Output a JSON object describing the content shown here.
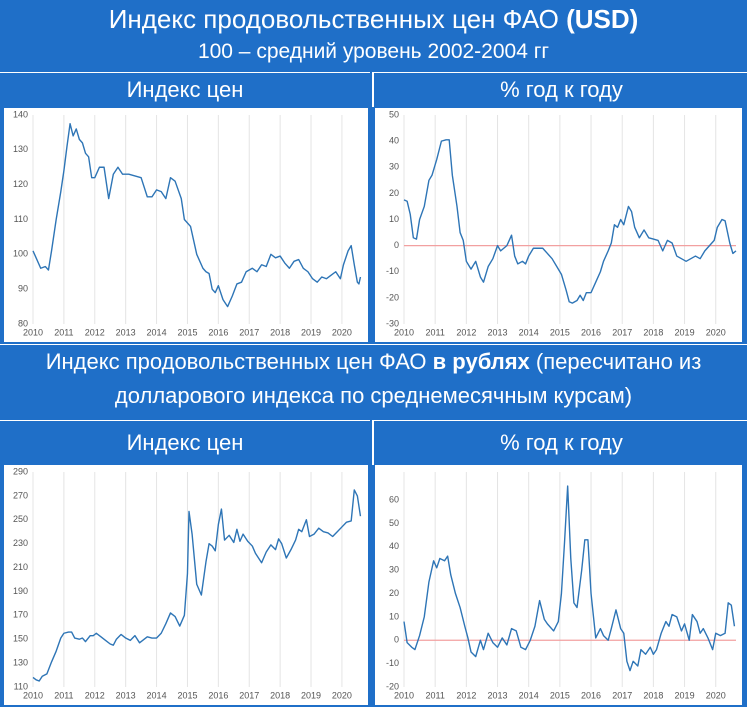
{
  "header": {
    "title": "Индекс продовольственных цен ФАО",
    "title_emphasis": "(USD)",
    "subtitle": "100 – средний уровень 2002-2004 гг"
  },
  "section": {
    "text_before": "Индекс продовольственных цен ФАО",
    "emphasis": "в рублях",
    "text_after": "(пересчитано из долларового индекса по среднемесячным курсам)"
  },
  "chart_data": [
    {
      "type": "line",
      "title": "Индекс цен",
      "color": "#2e75b6",
      "grid": true,
      "xlim": [
        2010,
        2020.65
      ],
      "xticks": [
        2010,
        2011,
        2012,
        2013,
        2014,
        2015,
        2016,
        2017,
        2018,
        2019,
        2020
      ],
      "ylim": [
        80,
        140
      ],
      "yticks": [
        80,
        90,
        100,
        110,
        120,
        130,
        140
      ],
      "x": [
        2010.0,
        2010.1,
        2010.25,
        2010.4,
        2010.5,
        2010.6,
        2010.75,
        2010.9,
        2011.0,
        2011.1,
        2011.2,
        2011.3,
        2011.4,
        2011.5,
        2011.6,
        2011.7,
        2011.8,
        2011.9,
        2012.0,
        2012.15,
        2012.3,
        2012.45,
        2012.6,
        2012.75,
        2012.9,
        2013.1,
        2013.3,
        2013.5,
        2013.7,
        2013.85,
        2014.0,
        2014.15,
        2014.3,
        2014.45,
        2014.6,
        2014.8,
        2014.9,
        2015.1,
        2015.3,
        2015.5,
        2015.6,
        2015.7,
        2015.8,
        2015.9,
        2016.0,
        2016.15,
        2016.3,
        2016.45,
        2016.6,
        2016.75,
        2016.9,
        2017.1,
        2017.25,
        2017.4,
        2017.55,
        2017.7,
        2017.85,
        2018.0,
        2018.15,
        2018.3,
        2018.45,
        2018.6,
        2018.75,
        2018.9,
        2019.05,
        2019.2,
        2019.35,
        2019.5,
        2019.65,
        2019.8,
        2019.95,
        2020.05,
        2020.2,
        2020.3,
        2020.4,
        2020.5,
        2020.55,
        2020.6
      ],
      "values": [
        101,
        99,
        96,
        96.5,
        95.5,
        101,
        110,
        118,
        124,
        131,
        137.5,
        134,
        136,
        133,
        132,
        129,
        128,
        122,
        122,
        125,
        125,
        116,
        123,
        125,
        123,
        123,
        122.5,
        122,
        116.5,
        116.5,
        118.5,
        118,
        116,
        122,
        121,
        116,
        110,
        108,
        100,
        96,
        95,
        94.5,
        90,
        89,
        91,
        87,
        85,
        88,
        91.5,
        92,
        95,
        96,
        95,
        97,
        96.5,
        100,
        99,
        99.5,
        97.5,
        96,
        98,
        98.5,
        96,
        95,
        93,
        92,
        93.5,
        93,
        94,
        95,
        93,
        97,
        101,
        102.5,
        97,
        92,
        91.5,
        93.5
      ]
    },
    {
      "type": "line",
      "title": "% год к году",
      "color": "#2e75b6",
      "grid": true,
      "hline": 0,
      "hline_color": "#f2a0a0",
      "xlim": [
        2010,
        2020.65
      ],
      "xticks": [
        2010,
        2011,
        2012,
        2013,
        2014,
        2015,
        2016,
        2017,
        2018,
        2019,
        2020
      ],
      "ylim": [
        -30,
        50
      ],
      "yticks": [
        -30,
        -20,
        -10,
        0,
        10,
        20,
        30,
        40,
        50
      ],
      "x": [
        2010.0,
        2010.1,
        2010.2,
        2010.3,
        2010.4,
        2010.5,
        2010.65,
        2010.8,
        2010.9,
        2011.05,
        2011.2,
        2011.35,
        2011.45,
        2011.55,
        2011.7,
        2011.8,
        2011.9,
        2012.0,
        2012.15,
        2012.3,
        2012.45,
        2012.55,
        2012.7,
        2012.85,
        2013.0,
        2013.1,
        2013.2,
        2013.3,
        2013.45,
        2013.55,
        2013.65,
        2013.8,
        2013.9,
        2014.0,
        2014.15,
        2014.3,
        2014.45,
        2014.6,
        2014.75,
        2014.9,
        2015.05,
        2015.2,
        2015.3,
        2015.4,
        2015.55,
        2015.65,
        2015.75,
        2015.85,
        2016.0,
        2016.15,
        2016.3,
        2016.4,
        2016.55,
        2016.65,
        2016.75,
        2016.85,
        2016.95,
        2017.05,
        2017.2,
        2017.3,
        2017.4,
        2017.55,
        2017.7,
        2017.85,
        2018.0,
        2018.15,
        2018.3,
        2018.45,
        2018.6,
        2018.75,
        2018.9,
        2019.05,
        2019.2,
        2019.35,
        2019.5,
        2019.65,
        2019.8,
        2019.95,
        2020.05,
        2020.2,
        2020.3,
        2020.45,
        2020.55,
        2020.65
      ],
      "values": [
        17.5,
        17,
        12,
        3,
        2.5,
        10,
        15,
        25,
        27,
        33,
        40,
        40.5,
        40.5,
        27,
        15,
        5,
        2,
        -6,
        -9,
        -6,
        -12,
        -14,
        -8,
        -5,
        0,
        -2,
        -1,
        0,
        4,
        -4,
        -7,
        -6,
        -7,
        -4,
        -1,
        -1,
        -1,
        -3,
        -5,
        -8,
        -11,
        -17,
        -21.5,
        -22,
        -21,
        -19,
        -21,
        -18,
        -18,
        -14,
        -10,
        -6,
        -2,
        1,
        8,
        7,
        10,
        8,
        15,
        13,
        7,
        3,
        6,
        3,
        2.5,
        2,
        -2,
        2,
        1,
        -4,
        -5,
        -6,
        -5,
        -4,
        -5,
        -2,
        0,
        2,
        7,
        10,
        9.5,
        1,
        -3,
        -2
      ]
    },
    {
      "type": "line",
      "title": "Индекс цен",
      "color": "#2e75b6",
      "grid": true,
      "xlim": [
        2010,
        2020.65
      ],
      "xticks": [
        2010,
        2011,
        2012,
        2013,
        2014,
        2015,
        2016,
        2017,
        2018,
        2019,
        2020
      ],
      "ylim": [
        110,
        290
      ],
      "yticks": [
        110,
        130,
        150,
        170,
        190,
        210,
        230,
        250,
        270,
        290
      ],
      "x": [
        2010.0,
        2010.1,
        2010.2,
        2010.3,
        2010.45,
        2010.6,
        2010.75,
        2010.9,
        2011.0,
        2011.15,
        2011.25,
        2011.35,
        2011.5,
        2011.6,
        2011.7,
        2011.85,
        2011.95,
        2012.05,
        2012.2,
        2012.35,
        2012.5,
        2012.6,
        2012.7,
        2012.85,
        2013.0,
        2013.15,
        2013.3,
        2013.45,
        2013.6,
        2013.7,
        2013.85,
        2014.0,
        2014.15,
        2014.3,
        2014.45,
        2014.6,
        2014.75,
        2014.9,
        2015.0,
        2015.05,
        2015.15,
        2015.3,
        2015.45,
        2015.6,
        2015.7,
        2015.8,
        2015.9,
        2016.0,
        2016.1,
        2016.2,
        2016.35,
        2016.5,
        2016.6,
        2016.7,
        2016.8,
        2016.95,
        2017.1,
        2017.2,
        2017.3,
        2017.4,
        2017.55,
        2017.7,
        2017.85,
        2017.95,
        2018.05,
        2018.2,
        2018.35,
        2018.5,
        2018.6,
        2018.7,
        2018.85,
        2018.95,
        2019.1,
        2019.25,
        2019.4,
        2019.55,
        2019.7,
        2019.85,
        2020.0,
        2020.15,
        2020.3,
        2020.4,
        2020.5,
        2020.6
      ],
      "values": [
        118,
        116,
        115,
        119,
        121,
        131,
        140,
        151,
        155,
        156,
        156,
        151,
        150,
        151,
        148,
        153,
        153,
        155,
        152,
        149,
        146,
        145,
        150,
        154,
        151,
        149,
        153,
        147,
        150,
        152,
        151,
        151,
        155,
        163,
        172,
        169,
        161,
        170,
        205,
        257,
        238,
        196,
        187,
        215,
        230,
        228,
        224,
        246,
        259,
        233,
        237,
        231,
        242,
        232,
        238,
        232,
        228,
        222,
        218,
        214,
        223,
        229,
        225,
        234,
        230,
        218,
        225,
        233,
        242,
        240,
        250,
        236,
        238,
        243,
        240,
        239,
        236,
        240,
        244,
        248,
        249,
        275,
        270,
        253
      ]
    },
    {
      "type": "line",
      "title": "% год к году",
      "color": "#2e75b6",
      "grid": true,
      "hline": 0,
      "hline_color": "#f2a0a0",
      "xlim": [
        2010,
        2020.65
      ],
      "xticks": [
        2010,
        2011,
        2012,
        2013,
        2014,
        2015,
        2016,
        2017,
        2018,
        2019,
        2020
      ],
      "ylim": [
        -20,
        72
      ],
      "yticks": [
        -20,
        -10,
        0,
        10,
        20,
        30,
        40,
        50,
        60
      ],
      "x": [
        2010.0,
        2010.1,
        2010.25,
        2010.35,
        2010.5,
        2010.65,
        2010.8,
        2010.95,
        2011.05,
        2011.15,
        2011.3,
        2011.4,
        2011.5,
        2011.65,
        2011.8,
        2011.95,
        2012.05,
        2012.15,
        2012.3,
        2012.45,
        2012.55,
        2012.7,
        2012.85,
        2013.0,
        2013.15,
        2013.3,
        2013.45,
        2013.6,
        2013.75,
        2013.9,
        2014.05,
        2014.2,
        2014.35,
        2014.5,
        2014.6,
        2014.8,
        2014.95,
        2015.05,
        2015.15,
        2015.25,
        2015.35,
        2015.45,
        2015.55,
        2015.7,
        2015.8,
        2015.9,
        2016.0,
        2016.15,
        2016.3,
        2016.4,
        2016.55,
        2016.65,
        2016.8,
        2016.95,
        2017.05,
        2017.15,
        2017.25,
        2017.35,
        2017.5,
        2017.6,
        2017.75,
        2017.9,
        2018.0,
        2018.1,
        2018.25,
        2018.4,
        2018.5,
        2018.6,
        2018.75,
        2018.9,
        2019.0,
        2019.15,
        2019.25,
        2019.4,
        2019.5,
        2019.6,
        2019.75,
        2019.9,
        2020.0,
        2020.15,
        2020.3,
        2020.4,
        2020.5,
        2020.6
      ],
      "values": [
        8,
        -1,
        -3,
        -4,
        2,
        10,
        25,
        34,
        31,
        35,
        34,
        36,
        28,
        20,
        14,
        6,
        1,
        -5,
        -7,
        0,
        -4,
        3,
        -1,
        -3,
        1,
        -2,
        5,
        4,
        -3,
        -4,
        0,
        6,
        17,
        9,
        7,
        4,
        8,
        20,
        42,
        66,
        35,
        16,
        14,
        30,
        43,
        43,
        20,
        1,
        5,
        2,
        0,
        5,
        13,
        5,
        3,
        -9,
        -13,
        -9,
        -11,
        -4,
        -6,
        -3,
        -6,
        -4,
        3,
        8,
        6,
        11,
        10,
        4,
        7,
        0,
        11,
        8,
        3,
        5,
        1,
        -4,
        3,
        2,
        3,
        16,
        15,
        6
      ]
    }
  ]
}
